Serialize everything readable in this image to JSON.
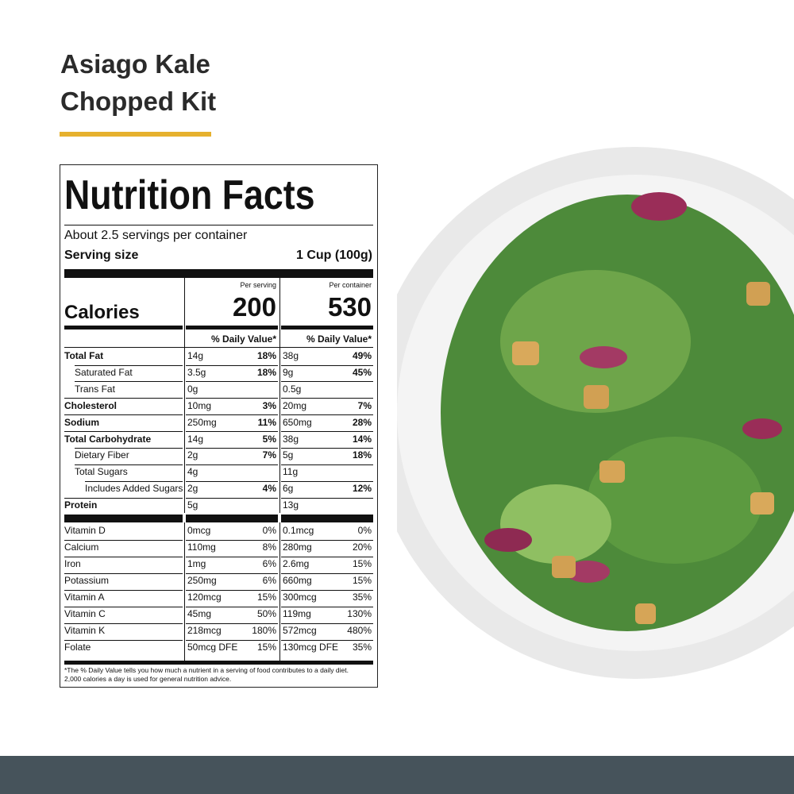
{
  "title": [
    "Asiago Kale",
    "Chopped Kit"
  ],
  "nutrition": {
    "heading": "Nutrition Facts",
    "servings": "About 2.5 servings per container",
    "serving_size_label": "Serving size",
    "serving_size": "1 Cup (100g)",
    "per_serving": "Per serving",
    "per_container": "Per container",
    "calories_label": "Calories",
    "calories_serving": 200,
    "calories_container": 530,
    "dv_header": [
      "% Daily Value*",
      "% Daily Value*"
    ],
    "nutrients": [
      [
        "Total Fat",
        "14g",
        "18%",
        "38g",
        "49%"
      ],
      [
        "Saturated Fat",
        "3.5g",
        "18%",
        "9g",
        "45%"
      ],
      [
        "Trans Fat",
        "0g",
        null,
        "0.5g",
        null
      ],
      [
        "Cholesterol",
        "10mg",
        "3%",
        "20mg",
        "7%"
      ],
      [
        "Sodium",
        "250mg",
        "11%",
        "650mg",
        "28%"
      ],
      [
        "Total Carbohydrate",
        "14g",
        "5%",
        "38g",
        "14%"
      ],
      [
        "Dietary Fiber",
        "2g",
        "7%",
        "5g",
        "18%"
      ],
      [
        "Total Sugars",
        "4g",
        null,
        "11g",
        null
      ],
      [
        "Includes Added Sugars",
        "2g",
        "4%",
        "6g",
        "12%"
      ],
      [
        "Protein",
        "5g",
        null,
        "13g",
        null
      ]
    ],
    "vitamins": [
      [
        "Vitamin D",
        "0mcg",
        "0%",
        "0.1mcg",
        "0%"
      ],
      [
        "Calcium",
        "110mg",
        "8%",
        "280mg",
        "20%"
      ],
      [
        "Iron",
        "1mg",
        "6%",
        "2.6mg",
        "15%"
      ],
      [
        "Potassium",
        "250mg",
        "6%",
        "660mg",
        "15%"
      ],
      [
        "Vitamin A",
        "120mcg",
        "15%",
        "300mcg",
        "35%"
      ],
      [
        "Vitamin C",
        "45mg",
        "50%",
        "119mg",
        "130%"
      ],
      [
        "Vitamin K",
        "218mcg",
        "180%",
        "572mcg",
        "480%"
      ],
      [
        "Folate",
        "50mcg DFE",
        "15%",
        "130mcg DFE",
        "35%"
      ]
    ],
    "footnote": [
      "*The % Daily Value tells you how much a nutrient in a serving of food contributes to a daily diet.",
      "2,000 calories a day is used for general nutrition advice."
    ]
  }
}
